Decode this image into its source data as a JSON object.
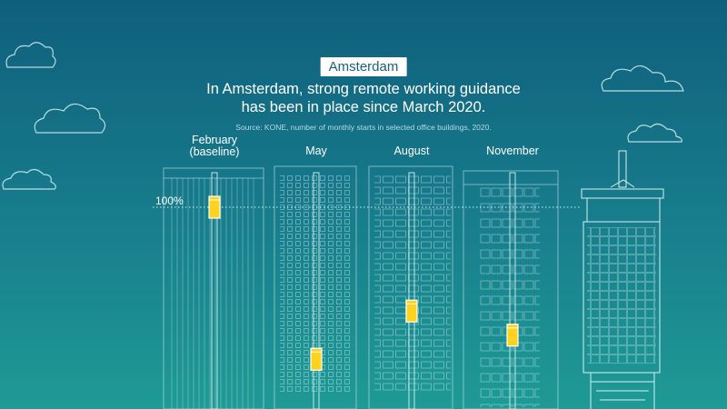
{
  "badge": "Amsterdam",
  "headline": {
    "line1": "In Amsterdam, strong remote working guidance",
    "line2": "has been in place since March 2020."
  },
  "source": "Source: KONE, number of monthly starts in selected office buildings, 2020.",
  "colors": {
    "background_top": "#0f5f7c",
    "background_bottom": "#1f9a96",
    "line_art": "#d6f0f2",
    "marker": "#ffd21f",
    "badge_text": "#1a5f80"
  },
  "chart_data": {
    "type": "bar",
    "title": "In Amsterdam, strong remote working guidance has been in place since March 2020.",
    "categories": [
      "February\n(baseline)",
      "May",
      "August",
      "November"
    ],
    "values": [
      100,
      18,
      44,
      31
    ],
    "unit": "% of baseline monthly elevator starts",
    "reference_line": {
      "value": 100,
      "label": "100%"
    },
    "ylim": [
      0,
      115
    ],
    "legend": "none",
    "grid": false
  }
}
